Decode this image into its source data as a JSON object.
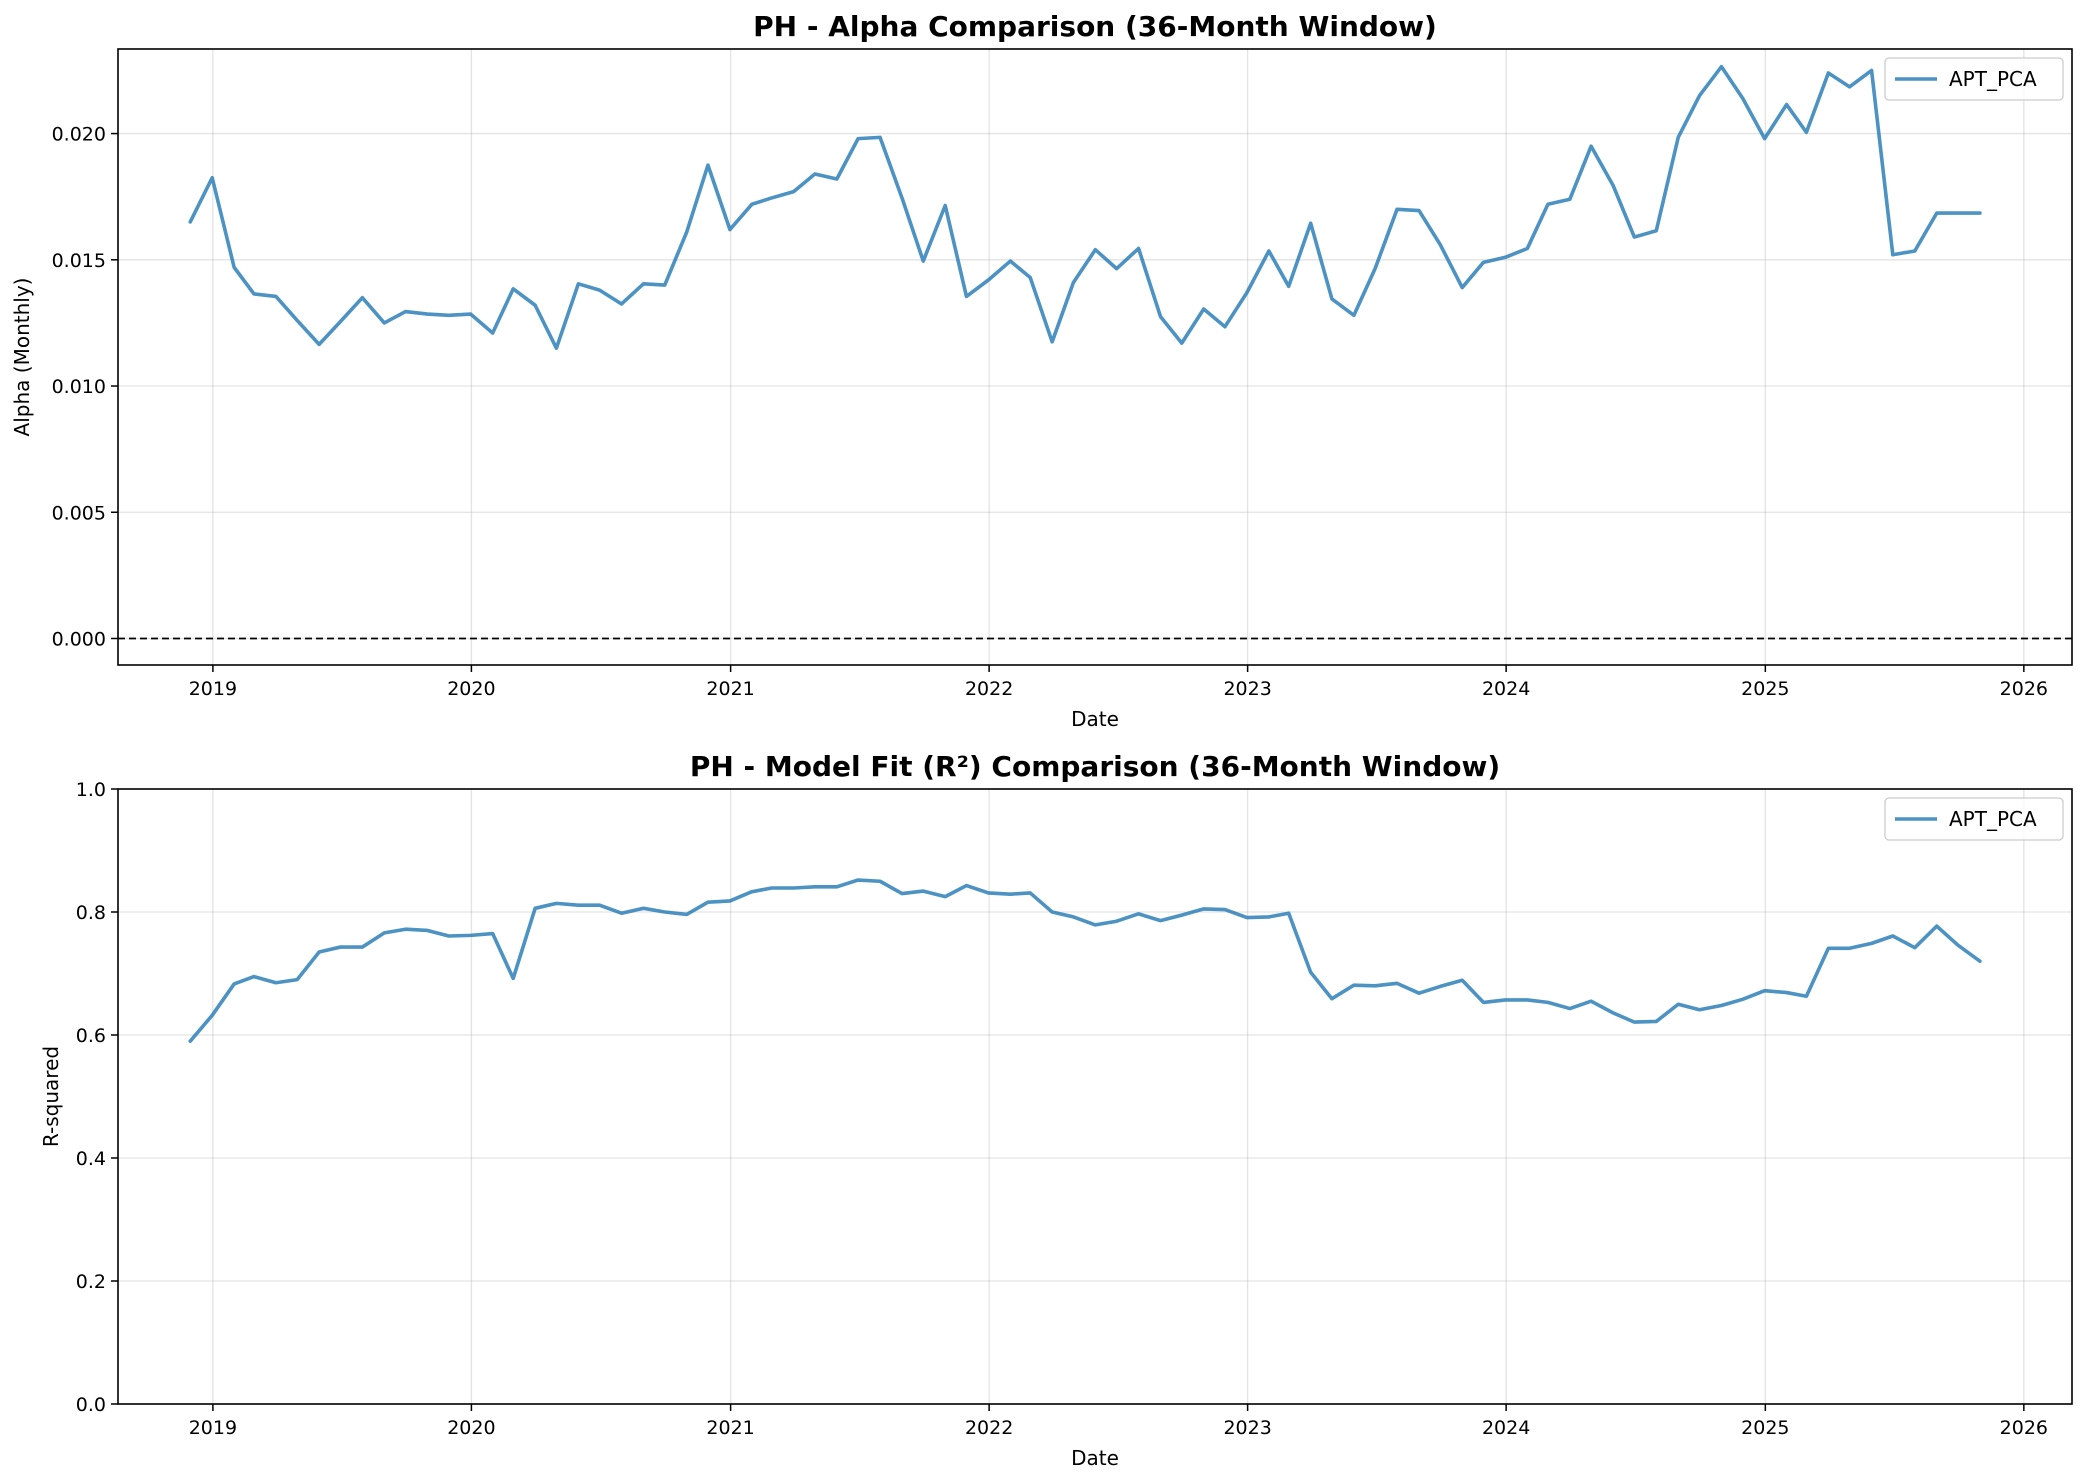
{
  "chart_data": [
    {
      "type": "line",
      "title": "PH - Alpha Comparison (36-Month Window)",
      "xlabel": "Date",
      "ylabel": "Alpha (Monthly)",
      "xlim": [
        "2018-08-20",
        "2026-03-10"
      ],
      "ylim": [
        -0.00105,
        0.02335
      ],
      "yticks": [
        0.0,
        0.005,
        0.01,
        0.015,
        0.02
      ],
      "ytick_labels": [
        "0.000",
        "0.005",
        "0.010",
        "0.015",
        "0.020"
      ],
      "xticks": [
        "2019-01-01",
        "2020-01-01",
        "2021-01-01",
        "2022-01-01",
        "2023-01-01",
        "2024-01-01",
        "2025-01-01",
        "2026-01-01"
      ],
      "xtick_labels": [
        "2019",
        "2020",
        "2021",
        "2022",
        "2023",
        "2024",
        "2025",
        "2026"
      ],
      "grid": true,
      "legend_position": "top-right",
      "reference_line": {
        "y": 0,
        "style": "dashed",
        "color": "#000000"
      },
      "series": [
        {
          "name": "APT_PCA",
          "color": "#1f77b4",
          "x": [
            "2018-11-30",
            "2018-12-31",
            "2019-01-31",
            "2019-02-28",
            "2019-03-31",
            "2019-04-30",
            "2019-05-31",
            "2019-06-30",
            "2019-07-31",
            "2019-08-31",
            "2019-09-30",
            "2019-10-31",
            "2019-11-30",
            "2019-12-31",
            "2020-01-31",
            "2020-02-29",
            "2020-03-31",
            "2020-04-30",
            "2020-05-31",
            "2020-06-30",
            "2020-07-31",
            "2020-08-31",
            "2020-09-30",
            "2020-10-31",
            "2020-11-30",
            "2020-12-31",
            "2021-01-31",
            "2021-02-28",
            "2021-03-31",
            "2021-04-30",
            "2021-05-31",
            "2021-06-30",
            "2021-07-31",
            "2021-08-31",
            "2021-09-30",
            "2021-10-31",
            "2021-11-30",
            "2021-12-31",
            "2022-01-31",
            "2022-02-28",
            "2022-03-31",
            "2022-04-30",
            "2022-05-31",
            "2022-06-30",
            "2022-07-31",
            "2022-08-31",
            "2022-09-30",
            "2022-10-31",
            "2022-11-30",
            "2022-12-31",
            "2023-01-31",
            "2023-02-28",
            "2023-03-31",
            "2023-04-30",
            "2023-05-31",
            "2023-06-30",
            "2023-07-31",
            "2023-08-31",
            "2023-09-30",
            "2023-10-31",
            "2023-11-30",
            "2023-12-31",
            "2024-01-31",
            "2024-02-29",
            "2024-03-31",
            "2024-04-30",
            "2024-05-31",
            "2024-06-30",
            "2024-07-31",
            "2024-08-31",
            "2024-09-30",
            "2024-10-31",
            "2024-11-30",
            "2024-12-31",
            "2025-01-31",
            "2025-02-28",
            "2025-03-31",
            "2025-04-30",
            "2025-05-31",
            "2025-06-30",
            "2025-07-31",
            "2025-08-31",
            "2025-09-30",
            "2025-10-31"
          ],
          "values": [
            0.0165,
            0.01825,
            0.0147,
            0.01365,
            0.01355,
            0.0126,
            0.01165,
            0.01255,
            0.0135,
            0.0125,
            0.01295,
            0.01285,
            0.0128,
            0.01285,
            0.0121,
            0.01385,
            0.0132,
            0.0115,
            0.01405,
            0.0138,
            0.01325,
            0.01405,
            0.014,
            0.0161,
            0.01875,
            0.0162,
            0.0172,
            0.01745,
            0.0177,
            0.0184,
            0.0182,
            0.0198,
            0.01985,
            0.01745,
            0.01495,
            0.01715,
            0.01355,
            0.0142,
            0.01495,
            0.0143,
            0.01175,
            0.0141,
            0.0154,
            0.01465,
            0.01545,
            0.01275,
            0.0117,
            0.01305,
            0.01235,
            0.0137,
            0.01535,
            0.01395,
            0.01645,
            0.01345,
            0.0128,
            0.01465,
            0.017,
            0.01695,
            0.0156,
            0.0139,
            0.0149,
            0.0151,
            0.01545,
            0.0172,
            0.0174,
            0.0195,
            0.01795,
            0.0159,
            0.01615,
            0.01985,
            0.0215,
            0.02265,
            0.0214,
            0.0198,
            0.02115,
            0.02005,
            0.0224,
            0.02185,
            0.0225,
            0.0152,
            0.01535,
            0.01685,
            0.01685,
            0.01685
          ]
        }
      ]
    },
    {
      "type": "line",
      "title": "PH - Model Fit (R²) Comparison (36-Month Window)",
      "xlabel": "Date",
      "ylabel": "R-squared",
      "xlim": [
        "2018-08-20",
        "2026-03-10"
      ],
      "ylim": [
        0,
        1
      ],
      "yticks": [
        0.0,
        0.2,
        0.4,
        0.6,
        0.8,
        1.0
      ],
      "ytick_labels": [
        "0.0",
        "0.2",
        "0.4",
        "0.6",
        "0.8",
        "1.0"
      ],
      "xticks": [
        "2019-01-01",
        "2020-01-01",
        "2021-01-01",
        "2022-01-01",
        "2023-01-01",
        "2024-01-01",
        "2025-01-01",
        "2026-01-01"
      ],
      "xtick_labels": [
        "2019",
        "2020",
        "2021",
        "2022",
        "2023",
        "2024",
        "2025",
        "2026"
      ],
      "grid": true,
      "legend_position": "top-right",
      "series": [
        {
          "name": "APT_PCA",
          "color": "#1f77b4",
          "x": [
            "2018-11-30",
            "2018-12-31",
            "2019-01-31",
            "2019-02-28",
            "2019-03-31",
            "2019-04-30",
            "2019-05-31",
            "2019-06-30",
            "2019-07-31",
            "2019-08-31",
            "2019-09-30",
            "2019-10-31",
            "2019-11-30",
            "2019-12-31",
            "2020-01-31",
            "2020-02-29",
            "2020-03-31",
            "2020-04-30",
            "2020-05-31",
            "2020-06-30",
            "2020-07-31",
            "2020-08-31",
            "2020-09-30",
            "2020-10-31",
            "2020-11-30",
            "2020-12-31",
            "2021-01-31",
            "2021-02-28",
            "2021-03-31",
            "2021-04-30",
            "2021-05-31",
            "2021-06-30",
            "2021-07-31",
            "2021-08-31",
            "2021-09-30",
            "2021-10-31",
            "2021-11-30",
            "2021-12-31",
            "2022-01-31",
            "2022-02-28",
            "2022-03-31",
            "2022-04-30",
            "2022-05-31",
            "2022-06-30",
            "2022-07-31",
            "2022-08-31",
            "2022-09-30",
            "2022-10-31",
            "2022-11-30",
            "2022-12-31",
            "2023-01-31",
            "2023-02-28",
            "2023-03-31",
            "2023-04-30",
            "2023-05-31",
            "2023-06-30",
            "2023-07-31",
            "2023-08-31",
            "2023-09-30",
            "2023-10-31",
            "2023-11-30",
            "2023-12-31",
            "2024-01-31",
            "2024-02-29",
            "2024-03-31",
            "2024-04-30",
            "2024-05-31",
            "2024-06-30",
            "2024-07-31",
            "2024-08-31",
            "2024-09-30",
            "2024-10-31",
            "2024-11-30",
            "2024-12-31",
            "2025-01-31",
            "2025-02-28",
            "2025-03-31",
            "2025-04-30",
            "2025-05-31",
            "2025-06-30",
            "2025-07-31",
            "2025-08-31",
            "2025-09-30",
            "2025-10-31"
          ],
          "values": [
            0.59,
            0.632,
            0.683,
            0.695,
            0.685,
            0.69,
            0.735,
            0.743,
            0.743,
            0.766,
            0.772,
            0.77,
            0.761,
            0.762,
            0.765,
            0.692,
            0.806,
            0.814,
            0.811,
            0.811,
            0.798,
            0.806,
            0.8,
            0.796,
            0.816,
            0.818,
            0.833,
            0.839,
            0.839,
            0.841,
            0.841,
            0.852,
            0.85,
            0.83,
            0.834,
            0.825,
            0.843,
            0.831,
            0.829,
            0.831,
            0.8,
            0.792,
            0.779,
            0.785,
            0.797,
            0.786,
            0.795,
            0.805,
            0.804,
            0.791,
            0.792,
            0.798,
            0.702,
            0.659,
            0.681,
            0.68,
            0.684,
            0.668,
            0.679,
            0.689,
            0.653,
            0.657,
            0.657,
            0.653,
            0.643,
            0.655,
            0.636,
            0.621,
            0.622,
            0.65,
            0.641,
            0.648,
            0.658,
            0.672,
            0.669,
            0.663,
            0.741,
            0.741,
            0.749,
            0.761,
            0.742,
            0.777,
            0.746,
            0.72
          ]
        }
      ]
    }
  ]
}
